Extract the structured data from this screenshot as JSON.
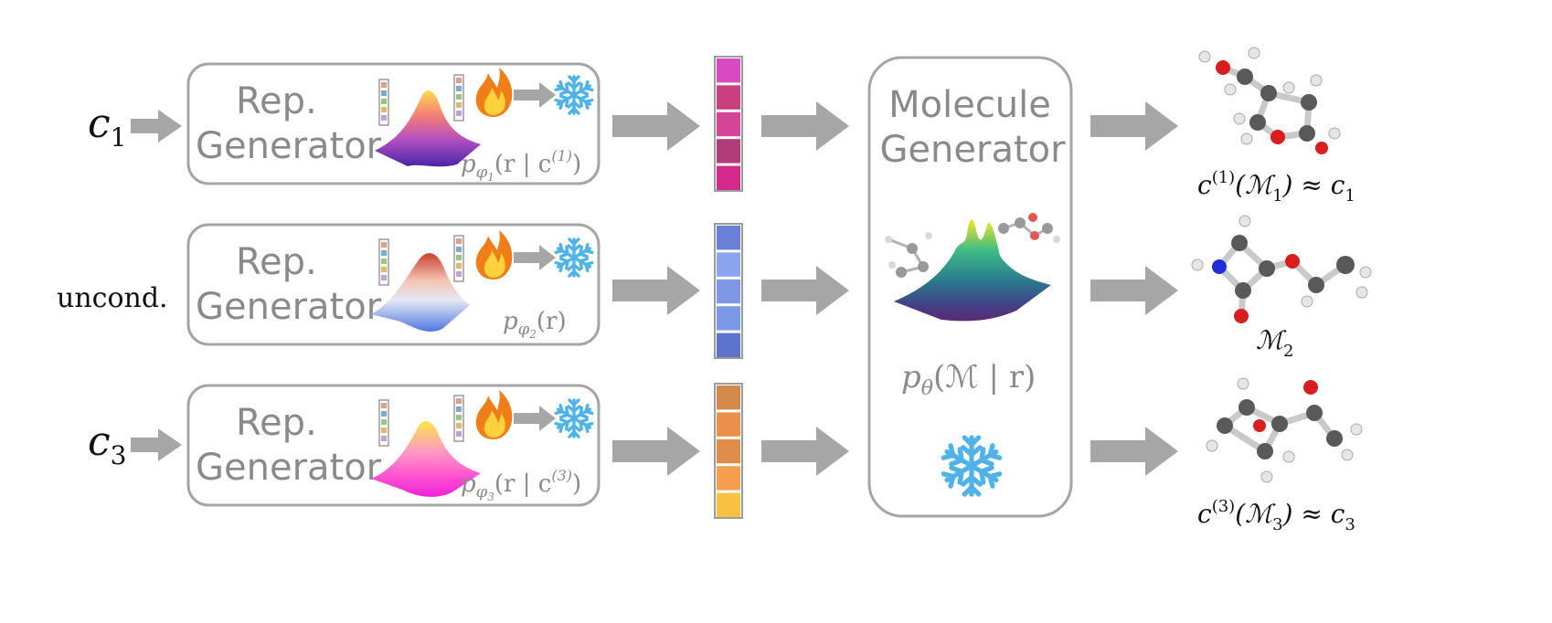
{
  "inputs": {
    "row1": {
      "main": "c",
      "sub": "1"
    },
    "row2": {
      "text": "uncond."
    },
    "row3": {
      "main": "c",
      "sub": "3"
    }
  },
  "rep_generators": [
    {
      "line1": "Rep.",
      "line2": "Generator",
      "density": {
        "p": "p",
        "phi": "φ",
        "phi_sub": "1",
        "body": "(r | c",
        "sup": "(1)",
        "close": ")"
      }
    },
    {
      "line1": "Rep.",
      "line2": "Generator",
      "density": {
        "p": "p",
        "phi": "φ",
        "phi_sub": "2",
        "body": "(r)",
        "sup": "",
        "close": ""
      }
    },
    {
      "line1": "Rep.",
      "line2": "Generator",
      "density": {
        "p": "p",
        "phi": "φ",
        "phi_sub": "3",
        "body": "(r | c",
        "sup": "(3)",
        "close": ")"
      }
    }
  ],
  "representation_colors": [
    [
      "#d84bc0",
      "#c8407e",
      "#d44497",
      "#b23b7a",
      "#d42a8e"
    ],
    [
      "#6a7fd6",
      "#8ca4ee",
      "#7f98e6",
      "#7c99e8",
      "#5e73cb"
    ],
    [
      "#d4894c",
      "#e8914a",
      "#e08d4b",
      "#f59e4d",
      "#f7c23f"
    ]
  ],
  "molecule_generator": {
    "line1": "Molecule",
    "line2": "Generator",
    "density": {
      "p": "p",
      "theta": "θ",
      "body": "(ℳ | r)"
    }
  },
  "outputs": [
    {
      "pre": "c",
      "sup": "(1)",
      "mid": "(ℳ",
      "sub": "1",
      "post": ") ≈ c",
      "post_sub": "1"
    },
    {
      "pre": "ℳ",
      "sub": "2"
    },
    {
      "pre": "c",
      "sup": "(3)",
      "mid": "(ℳ",
      "sub": "3",
      "post": ") ≈ c",
      "post_sub": "3"
    }
  ],
  "colors": {
    "box_border": "#a5a5a5",
    "arrow": "#a6a6a6",
    "text_gray": "#8a8a8a",
    "snowflake": "#4fb3ea",
    "flame_outer": "#f07d18",
    "flame_inner": "#ffd23b",
    "atom_carbon": "#595959",
    "atom_oxygen": "#d81e1e",
    "atom_nitrogen": "#1d2fd8",
    "atom_hydrogen": "#e6e6e6"
  },
  "icons": [
    "flame-icon",
    "snowflake-icon",
    "arrow-right-icon"
  ]
}
